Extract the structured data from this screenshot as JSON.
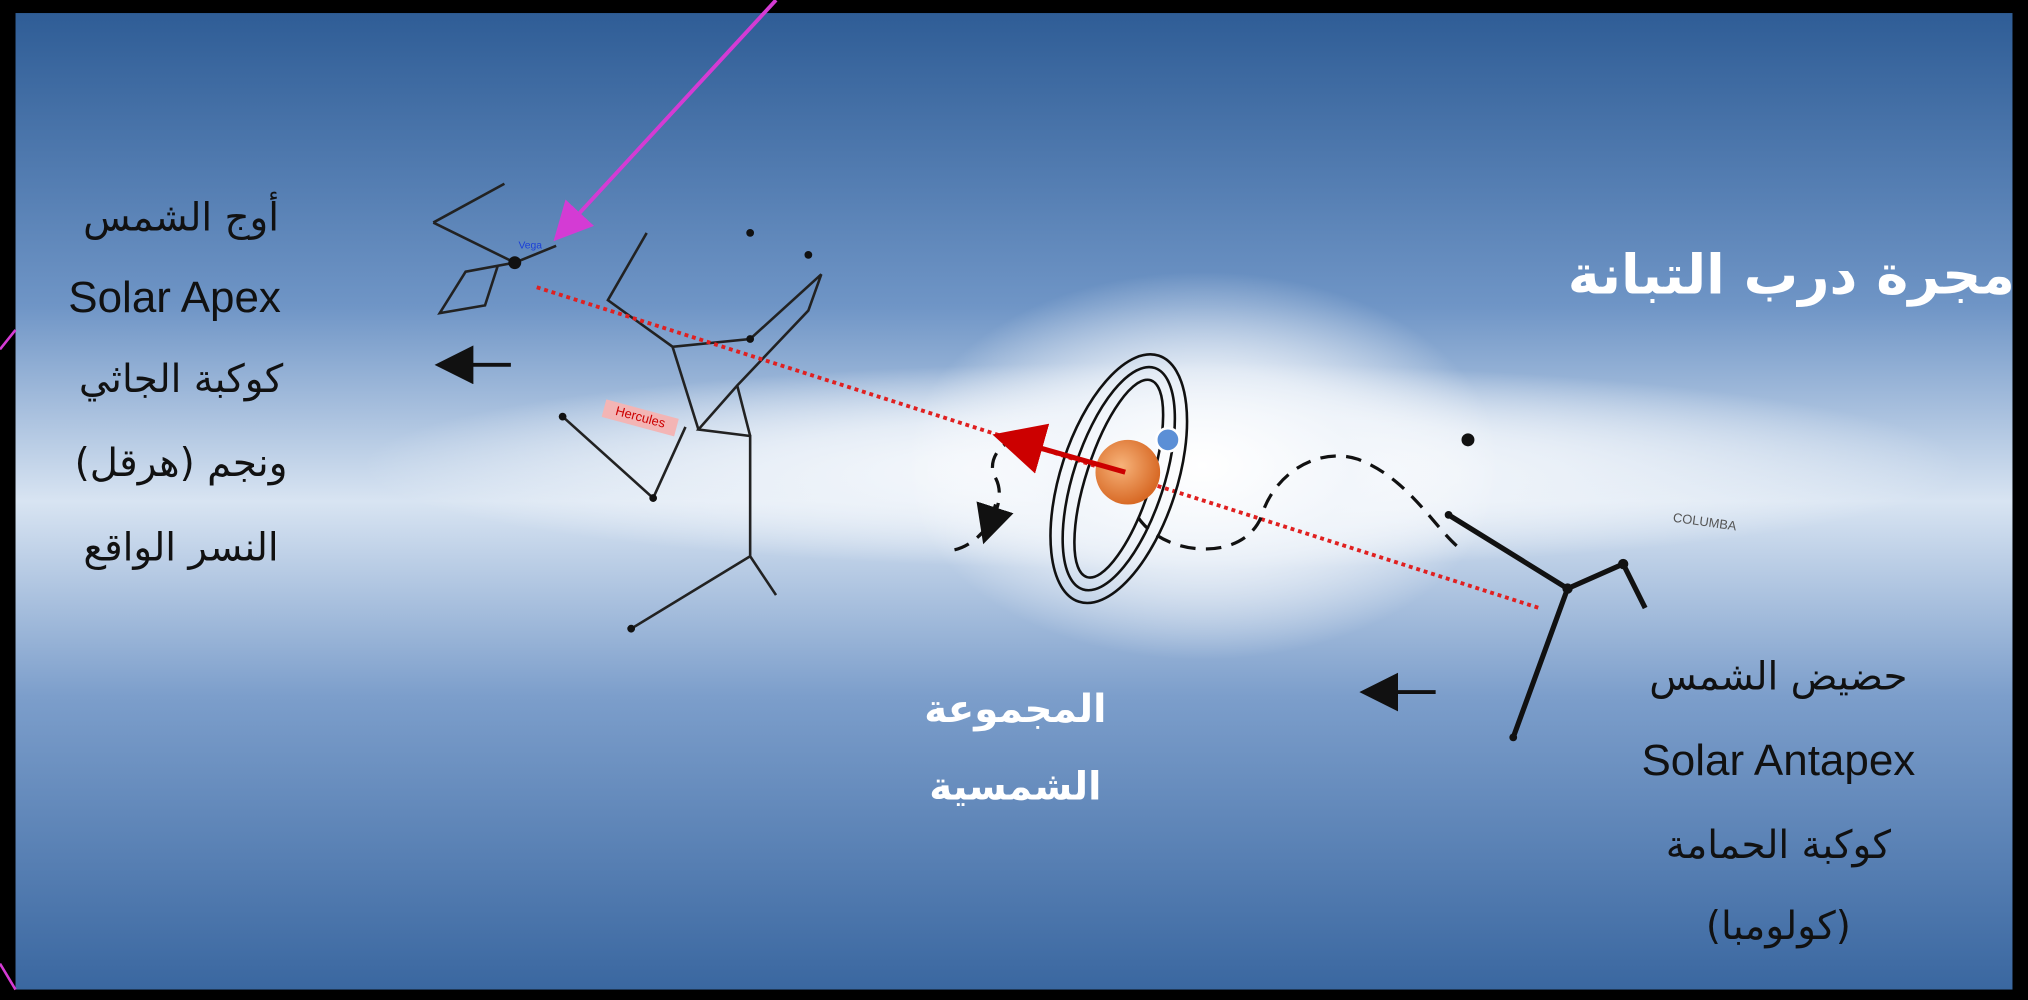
{
  "title": "مجرة درب التبانة",
  "apex": {
    "arabic": "أوج الشمس",
    "english": "Solar Apex",
    "lines": [
      "كوكبة الجاثي",
      "(هرقل) ونجم",
      "النسر الواقع"
    ]
  },
  "solar_system": {
    "lines": [
      "المجموعة",
      "الشمسية"
    ]
  },
  "antapex": {
    "arabic": "حضيض الشمس",
    "english": "Solar Antapex",
    "lines": [
      "كوكبة الحمامة",
      "(كولومبا)"
    ]
  },
  "star_labels": {
    "vega": "Vega",
    "hercules": "Hercules",
    "columba": "COLUMBA"
  }
}
